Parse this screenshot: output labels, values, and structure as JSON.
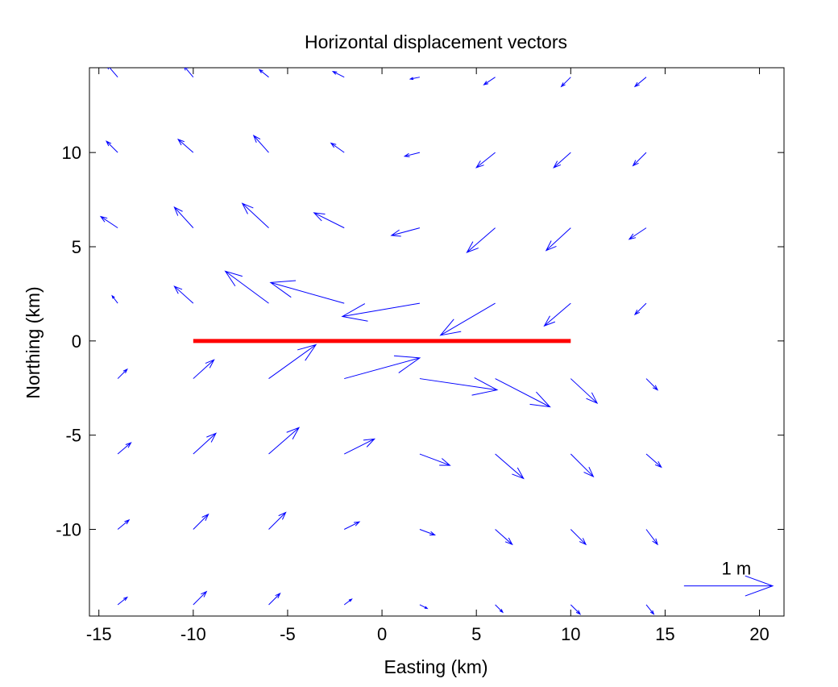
{
  "chart_data": {
    "type": "quiver",
    "title": "Horizontal displacement vectors",
    "xlabel": "Easting (km)",
    "ylabel": "Northing (km)",
    "xlim": [
      -15.5,
      21.3
    ],
    "ylim": [
      -14.6,
      14.5
    ],
    "xticks": [
      -15,
      -10,
      -5,
      0,
      5,
      10,
      15,
      20
    ],
    "yticks": [
      -10,
      -5,
      0,
      5,
      10
    ],
    "colors": {
      "vectors": "#0000ff",
      "fault": "#ff0000",
      "reference": "#0000ff",
      "axes": "#000000"
    },
    "fault": {
      "x": [
        -10,
        10
      ],
      "y": [
        0,
        0
      ]
    },
    "reference_vector": {
      "label": "1 m",
      "x": 16,
      "y": -13,
      "dx": 4.7,
      "dy": 0
    },
    "vectors": [
      {
        "x": -14,
        "y": 14,
        "dx": -0.6,
        "dy": 0.7
      },
      {
        "x": -10,
        "y": 14,
        "dx": -0.5,
        "dy": 0.6
      },
      {
        "x": -6,
        "y": 14,
        "dx": -0.5,
        "dy": 0.4
      },
      {
        "x": -2,
        "y": 14,
        "dx": -0.6,
        "dy": 0.3
      },
      {
        "x": 2,
        "y": 14,
        "dx": -0.5,
        "dy": -0.1
      },
      {
        "x": 6,
        "y": 14,
        "dx": -0.6,
        "dy": -0.4
      },
      {
        "x": 10,
        "y": 14,
        "dx": -0.5,
        "dy": -0.5
      },
      {
        "x": 14,
        "y": 14,
        "dx": -0.6,
        "dy": -0.5
      },
      {
        "x": -14,
        "y": 10,
        "dx": -0.6,
        "dy": 0.6
      },
      {
        "x": -10,
        "y": 10,
        "dx": -0.8,
        "dy": 0.7
      },
      {
        "x": -6,
        "y": 10,
        "dx": -0.8,
        "dy": 0.9
      },
      {
        "x": -2,
        "y": 10,
        "dx": -0.7,
        "dy": 0.5
      },
      {
        "x": 2,
        "y": 10,
        "dx": -0.8,
        "dy": -0.2
      },
      {
        "x": 6,
        "y": 10,
        "dx": -1.0,
        "dy": -0.8
      },
      {
        "x": 10,
        "y": 10,
        "dx": -0.9,
        "dy": -0.8
      },
      {
        "x": 14,
        "y": 10,
        "dx": -0.7,
        "dy": -0.7
      },
      {
        "x": -14,
        "y": 6,
        "dx": -0.9,
        "dy": 0.6
      },
      {
        "x": -10,
        "y": 6,
        "dx": -1.0,
        "dy": 1.1
      },
      {
        "x": -6,
        "y": 6,
        "dx": -1.4,
        "dy": 1.3
      },
      {
        "x": -2,
        "y": 6,
        "dx": -1.6,
        "dy": 0.8
      },
      {
        "x": 2,
        "y": 6,
        "dx": -1.5,
        "dy": -0.4
      },
      {
        "x": 6,
        "y": 6,
        "dx": -1.5,
        "dy": -1.3
      },
      {
        "x": 10,
        "y": 6,
        "dx": -1.3,
        "dy": -1.2
      },
      {
        "x": 14,
        "y": 6,
        "dx": -0.9,
        "dy": -0.6
      },
      {
        "x": -14,
        "y": 2,
        "dx": -0.3,
        "dy": 0.4
      },
      {
        "x": -10,
        "y": 2,
        "dx": -1.0,
        "dy": 0.9
      },
      {
        "x": -6,
        "y": 2,
        "dx": -2.3,
        "dy": 1.7
      },
      {
        "x": -2,
        "y": 2,
        "dx": -3.9,
        "dy": 1.1
      },
      {
        "x": 2,
        "y": 2,
        "dx": -4.1,
        "dy": -0.7
      },
      {
        "x": 6,
        "y": 2,
        "dx": -2.9,
        "dy": -1.7
      },
      {
        "x": 10,
        "y": 2,
        "dx": -1.4,
        "dy": -1.2
      },
      {
        "x": 14,
        "y": 2,
        "dx": -0.6,
        "dy": -0.6
      },
      {
        "x": -14,
        "y": -2,
        "dx": 0.5,
        "dy": 0.5
      },
      {
        "x": -10,
        "y": -2,
        "dx": 1.1,
        "dy": 1.0
      },
      {
        "x": -6,
        "y": -2,
        "dx": 2.5,
        "dy": 1.8
      },
      {
        "x": -2,
        "y": -2,
        "dx": 4.0,
        "dy": 1.1
      },
      {
        "x": 2,
        "y": -2,
        "dx": 4.1,
        "dy": -0.6
      },
      {
        "x": 6,
        "y": -2,
        "dx": 2.9,
        "dy": -1.5
      },
      {
        "x": 10,
        "y": -2,
        "dx": 1.4,
        "dy": -1.3
      },
      {
        "x": 14,
        "y": -2,
        "dx": 0.6,
        "dy": -0.6
      },
      {
        "x": -14,
        "y": -6,
        "dx": 0.7,
        "dy": 0.6
      },
      {
        "x": -10,
        "y": -6,
        "dx": 1.2,
        "dy": 1.1
      },
      {
        "x": -6,
        "y": -6,
        "dx": 1.6,
        "dy": 1.4
      },
      {
        "x": -2,
        "y": -6,
        "dx": 1.6,
        "dy": 0.8
      },
      {
        "x": 2,
        "y": -6,
        "dx": 1.6,
        "dy": -0.6
      },
      {
        "x": 6,
        "y": -6,
        "dx": 1.5,
        "dy": -1.3
      },
      {
        "x": 10,
        "y": -6,
        "dx": 1.2,
        "dy": -1.2
      },
      {
        "x": 14,
        "y": -6,
        "dx": 0.8,
        "dy": -0.7
      },
      {
        "x": -14,
        "y": -10,
        "dx": 0.6,
        "dy": 0.5
      },
      {
        "x": -10,
        "y": -10,
        "dx": 0.8,
        "dy": 0.8
      },
      {
        "x": -6,
        "y": -10,
        "dx": 0.9,
        "dy": 0.9
      },
      {
        "x": -2,
        "y": -10,
        "dx": 0.8,
        "dy": 0.4
      },
      {
        "x": 2,
        "y": -10,
        "dx": 0.8,
        "dy": -0.3
      },
      {
        "x": 6,
        "y": -10,
        "dx": 0.9,
        "dy": -0.8
      },
      {
        "x": 10,
        "y": -10,
        "dx": 0.8,
        "dy": -0.8
      },
      {
        "x": 14,
        "y": -10,
        "dx": 0.6,
        "dy": -0.8
      },
      {
        "x": -14,
        "y": -14,
        "dx": 0.5,
        "dy": 0.4
      },
      {
        "x": -10,
        "y": -14,
        "dx": 0.7,
        "dy": 0.7
      },
      {
        "x": -6,
        "y": -14,
        "dx": 0.6,
        "dy": 0.6
      },
      {
        "x": -2,
        "y": -14,
        "dx": 0.4,
        "dy": 0.3
      },
      {
        "x": 2,
        "y": -14,
        "dx": 0.4,
        "dy": -0.2
      },
      {
        "x": 6,
        "y": -14,
        "dx": 0.4,
        "dy": -0.4
      },
      {
        "x": 10,
        "y": -14,
        "dx": 0.5,
        "dy": -0.5
      },
      {
        "x": 14,
        "y": -14,
        "dx": 0.4,
        "dy": -0.5
      }
    ]
  }
}
